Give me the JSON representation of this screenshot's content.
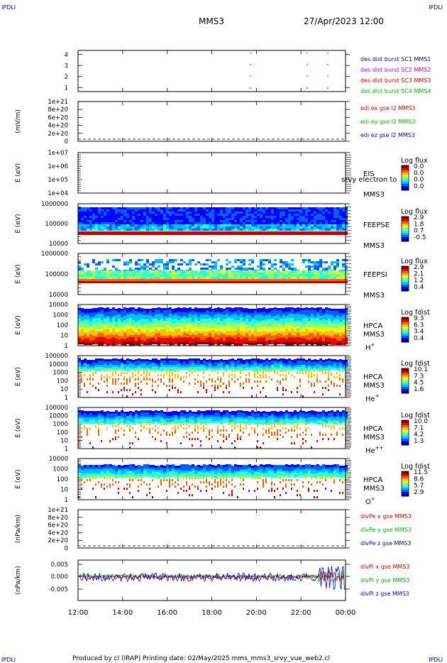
{
  "corner_left": "IPDLI",
  "corner_right": "IPDLI",
  "title": "MMS3",
  "datetime": "27/Apr/2023 12:00",
  "footer": "Produced by cl (IRAP)   Printing date: 02/May/2025   mms_mms3_srvy_vue_web2.cl",
  "time_ticks": [
    "12:00",
    "14:00",
    "16:00",
    "18:00",
    "20:00",
    "22:00",
    "00:00"
  ],
  "colors": {
    "red": "#e00000",
    "green": "#00b000",
    "blue": "#0000c8",
    "magenta": "#d000d0",
    "dkgreen": "#00c000"
  },
  "chart_data": [
    {
      "type": "scatter",
      "panel": "burst",
      "ylabel": "",
      "yticks": [
        "4",
        "3",
        "2",
        "1"
      ],
      "legend": [
        {
          "text": "des dist burst SC1 MMS1",
          "color": "#0000c8"
        },
        {
          "text": "des dist burst SC2 MMS2",
          "color": "#d000d0"
        },
        {
          "text": "des dist burst SC3 MMS3",
          "color": "#e00000"
        },
        {
          "text": "des dist burst SC4 MMS4",
          "color": "#00c000"
        }
      ],
      "x": [
        "19:55",
        "21:55",
        "22:55"
      ],
      "ylim": [
        0.5,
        4.5
      ]
    },
    {
      "type": "line",
      "panel": "edi",
      "ylabel": "(mV/m)",
      "yticks": [
        "1e+21",
        "8e+20",
        "6e+20",
        "4e+20",
        "2e+20",
        "0"
      ],
      "legend": [
        {
          "text": "edi ex gse l2 MMS3",
          "color": "#e00000"
        },
        {
          "text": "edi ey gse l2 MMS3",
          "color": "#00c000"
        },
        {
          "text": "edi ez gse l2 MMS3",
          "color": "#0000c8"
        }
      ],
      "ylim": [
        0,
        1e+21
      ]
    },
    {
      "type": "heatmap",
      "panel": "eis",
      "ylabel": "E (eV)",
      "yticks": [
        "1e+07",
        "1e+06",
        "1e+05",
        "1e+04"
      ],
      "instrument": "EIS",
      "sc": "MMS3",
      "overlay": "srvy electron to",
      "cbar_title": "Log flux",
      "cbar_ticks": [
        "0.0",
        "0.0",
        "0.0",
        "0.0"
      ]
    },
    {
      "type": "heatmap",
      "panel": "feepse",
      "ylabel": "E (eV)",
      "yticks": [
        "1000000",
        "100000",
        "10000"
      ],
      "instrument": "FEEPSE",
      "sc": "MMS3",
      "cbar_title": "Log flux",
      "cbar_ticks": [
        "2.9",
        "1.8",
        "0.7",
        "-0.5"
      ]
    },
    {
      "type": "heatmap",
      "panel": "feepsi",
      "ylabel": "E (eV)",
      "yticks": [
        "1000000",
        "100000",
        "10000"
      ],
      "instrument": "FEEPSI",
      "sc": "MMS3",
      "cbar_title": "Log flux",
      "cbar_ticks": [
        "2.9",
        "2.1",
        "1.2",
        "0.4"
      ]
    },
    {
      "type": "heatmap",
      "panel": "hpca_h",
      "ylabel": "E (eV)",
      "yticks": [
        "10000",
        "1000",
        "100",
        "10",
        "1"
      ],
      "instrument": "HPCA",
      "sc": "MMS3",
      "species": "H",
      "charge": "+",
      "cbar_title": "Log fdist",
      "cbar_ticks": [
        "9.3",
        "6.3",
        "3.4",
        "0.4"
      ]
    },
    {
      "type": "heatmap",
      "panel": "hpca_he",
      "ylabel": "E (eV)",
      "yticks": [
        "100000",
        "10000",
        "1000",
        "100",
        "10",
        "1"
      ],
      "instrument": "HPCA",
      "sc": "MMS3",
      "species": "He",
      "charge": "+",
      "cbar_title": "Log fdist",
      "cbar_ticks": [
        "10.1",
        "7.3",
        "4.5",
        "1.6"
      ]
    },
    {
      "type": "heatmap",
      "panel": "hpca_hepp",
      "ylabel": "E (eV)",
      "yticks": [
        "100000",
        "10000",
        "1000",
        "100",
        "10",
        "1"
      ],
      "instrument": "HPCA",
      "sc": "MMS3",
      "species": "He",
      "charge": "++",
      "cbar_title": "Log fdist",
      "cbar_ticks": [
        "10.0",
        "7.1",
        "4.2",
        "1.3"
      ]
    },
    {
      "type": "heatmap",
      "panel": "hpca_o",
      "ylabel": "E (eV)",
      "yticks": [
        "10000",
        "1000",
        "100",
        "10",
        "1"
      ],
      "instrument": "HPCA",
      "sc": "MMS3",
      "species": "O",
      "charge": "+",
      "cbar_title": "Log fdist",
      "cbar_ticks": [
        "11.5",
        "8.6",
        "5.7",
        "2.9"
      ]
    },
    {
      "type": "line",
      "panel": "divpe",
      "ylabel": "(nPa/km)",
      "yticks": [
        "1e+21",
        "8e+20",
        "6e+20",
        "4e+20",
        "2e+20",
        "0"
      ],
      "legend": [
        {
          "text": "divPe x gse MMS3",
          "color": "#e00000"
        },
        {
          "text": "divPe y gse MMS3",
          "color": "#00c000"
        },
        {
          "text": "divPe z gse MMS3",
          "color": "#0000c8"
        }
      ],
      "ylim": [
        0,
        1e+21
      ]
    },
    {
      "type": "line",
      "panel": "divpi",
      "ylabel": "(nPa/km)",
      "yticks": [
        "0.005",
        "0.000",
        "-0.005"
      ],
      "legend": [
        {
          "text": "divPi x gse MMS3",
          "color": "#e00000"
        },
        {
          "text": "divPi y gse MMS3",
          "color": "#00c000"
        },
        {
          "text": "divPi z gse MMS3",
          "color": "#0000c8"
        }
      ],
      "ylim": [
        -0.008,
        0.007
      ]
    }
  ]
}
